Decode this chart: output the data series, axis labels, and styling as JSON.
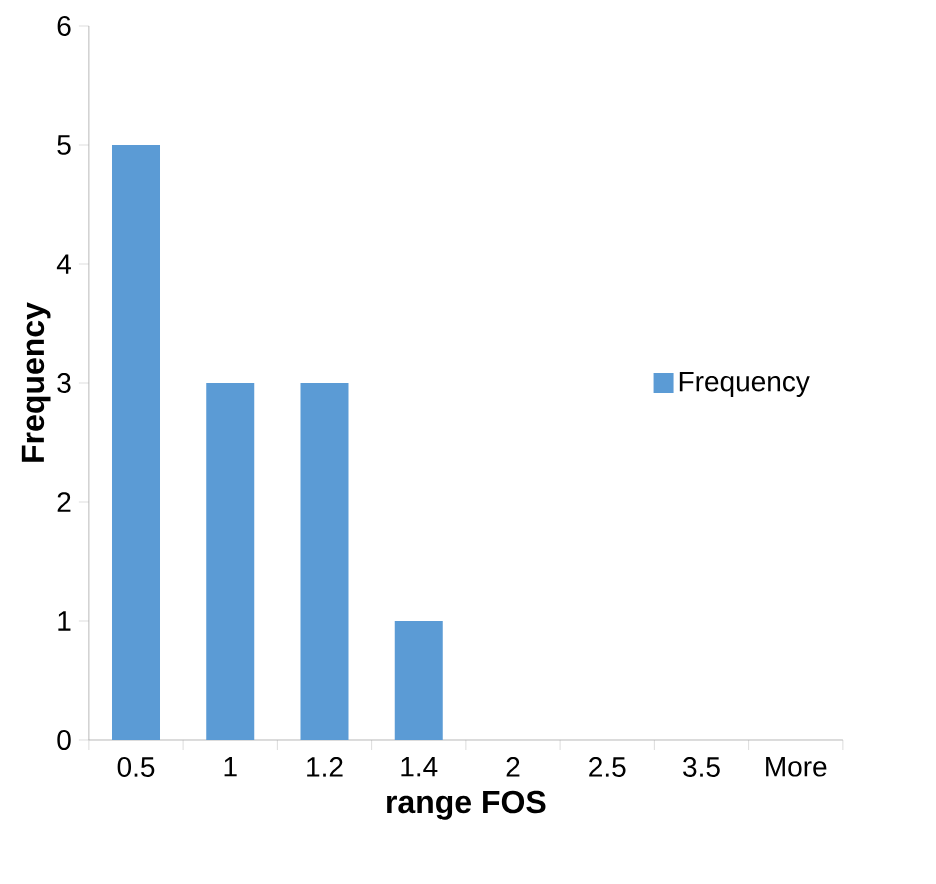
{
  "chart_data": {
    "type": "bar",
    "xlabel": "range FOS",
    "ylabel": "Frequency",
    "categories": [
      "0.5",
      "1",
      "1.2",
      "1.4",
      "2",
      "2.5",
      "3.5",
      "More"
    ],
    "series": [
      {
        "name": "Frequency",
        "color": "#5b9bd5",
        "values": [
          5,
          3,
          3,
          1,
          0,
          0,
          0,
          0
        ]
      }
    ],
    "ylim": [
      0,
      6
    ],
    "yticks": [
      0,
      1,
      2,
      3,
      4,
      5,
      6
    ],
    "legend": "right"
  }
}
